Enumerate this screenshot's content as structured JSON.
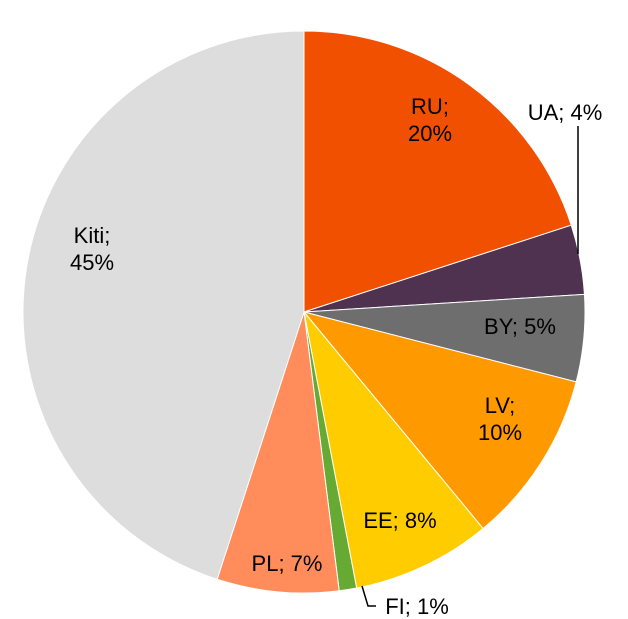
{
  "chart_data": {
    "type": "pie",
    "values": [
      20,
      4,
      5,
      10,
      8,
      1,
      7,
      45
    ],
    "value_labels": [
      "RU; 20%",
      "UA; 4%",
      "BY; 5%",
      "LV; 10%",
      "EE; 8%",
      "FI; 1%",
      "PL; 7%",
      "Kiti; 45%"
    ],
    "colors": [
      "#f05000",
      "#4f3250",
      "#6e6e6e",
      "#ff9900",
      "#ffcc00",
      "#66aa33",
      "#ff8c5a",
      "#dddddd"
    ]
  }
}
